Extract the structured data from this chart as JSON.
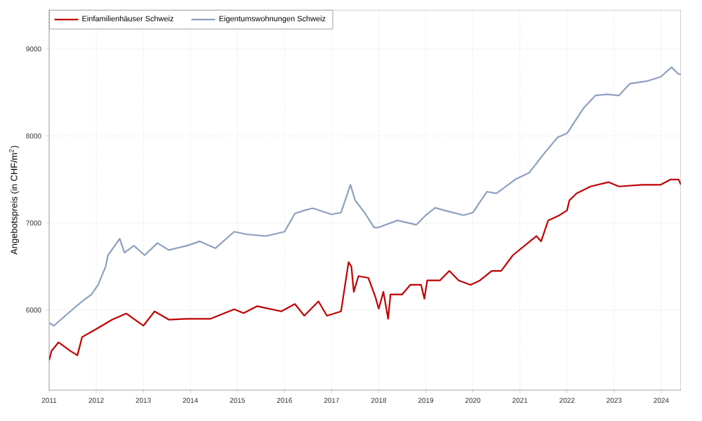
{
  "chart_data": {
    "type": "line",
    "ylabel": "Angebotspreis (in CHF/m$^{2}$)",
    "xlim": [
      2011,
      2024.42
    ],
    "ylim": [
      5080,
      9450
    ],
    "xticks": [
      2011,
      2012,
      2013,
      2014,
      2015,
      2016,
      2017,
      2018,
      2019,
      2020,
      2021,
      2022,
      2023,
      2024
    ],
    "yticks": [
      6000,
      7000,
      8000,
      9000
    ],
    "grid": true,
    "legend": "top left",
    "line_style": "solid",
    "marker": "none",
    "series": [
      {
        "name": "Einfamilienhäuser Schweiz",
        "color": "#c00000",
        "x": [
          2011.0,
          2011.05,
          2011.2,
          2011.45,
          2011.6,
          2011.7,
          2011.98,
          2012.34,
          2012.64,
          2013.0,
          2013.24,
          2013.54,
          2013.93,
          2014.43,
          2014.93,
          2015.13,
          2015.42,
          2015.93,
          2016.22,
          2016.42,
          2016.72,
          2016.9,
          2017.2,
          2017.36,
          2017.42,
          2017.47,
          2017.57,
          2017.78,
          2017.93,
          2018.0,
          2018.1,
          2018.2,
          2018.25,
          2018.5,
          2018.67,
          2018.9,
          2018.97,
          2019.03,
          2019.3,
          2019.5,
          2019.7,
          2019.95,
          2020.15,
          2020.4,
          2020.6,
          2020.85,
          2021.1,
          2021.35,
          2021.45,
          2021.6,
          2021.84,
          2022.0,
          2022.05,
          2022.2,
          2022.5,
          2022.88,
          2023.1,
          2023.6,
          2023.99,
          2024.2,
          2024.37,
          2024.42
        ],
        "values": [
          5424,
          5530,
          5630,
          5530,
          5480,
          5690,
          5775,
          5890,
          5960,
          5820,
          5985,
          5890,
          5900,
          5900,
          6010,
          5965,
          6045,
          5985,
          6070,
          5935,
          6100,
          5935,
          5985,
          6550,
          6500,
          6210,
          6390,
          6370,
          6150,
          6015,
          6210,
          5900,
          6180,
          6180,
          6290,
          6290,
          6130,
          6340,
          6340,
          6450,
          6340,
          6290,
          6340,
          6450,
          6450,
          6630,
          6740,
          6850,
          6790,
          7030,
          7090,
          7145,
          7260,
          7340,
          7420,
          7470,
          7420,
          7440,
          7440,
          7500,
          7500,
          7440
        ]
      },
      {
        "name": "Eigentumswohnungen Schweiz",
        "color": "#8da0c0",
        "x": [
          2011.0,
          2011.1,
          2011.45,
          2011.7,
          2011.9,
          2012.04,
          2012.2,
          2012.25,
          2012.5,
          2012.6,
          2012.8,
          2013.03,
          2013.3,
          2013.54,
          2013.93,
          2014.2,
          2014.53,
          2014.93,
          2015.2,
          2015.6,
          2016.0,
          2016.22,
          2016.42,
          2016.6,
          2017.0,
          2017.2,
          2017.4,
          2017.5,
          2017.7,
          2017.9,
          2018.0,
          2018.4,
          2018.8,
          2019.0,
          2019.2,
          2019.4,
          2019.8,
          2020.0,
          2020.3,
          2020.5,
          2020.9,
          2021.2,
          2021.5,
          2021.8,
          2022.0,
          2022.35,
          2022.6,
          2022.85,
          2023.1,
          2023.33,
          2023.69,
          2023.99,
          2024.22,
          2024.37,
          2024.42
        ],
        "values": [
          5855,
          5820,
          5985,
          6100,
          6180,
          6290,
          6500,
          6630,
          6820,
          6660,
          6740,
          6630,
          6770,
          6690,
          6740,
          6790,
          6710,
          6900,
          6870,
          6850,
          6900,
          7110,
          7145,
          7170,
          7100,
          7120,
          7440,
          7260,
          7120,
          6950,
          6950,
          7030,
          6980,
          7090,
          7175,
          7145,
          7090,
          7120,
          7360,
          7340,
          7500,
          7580,
          7790,
          7985,
          8030,
          8320,
          8465,
          8480,
          8465,
          8600,
          8630,
          8680,
          8790,
          8710,
          8710
        ]
      }
    ]
  }
}
